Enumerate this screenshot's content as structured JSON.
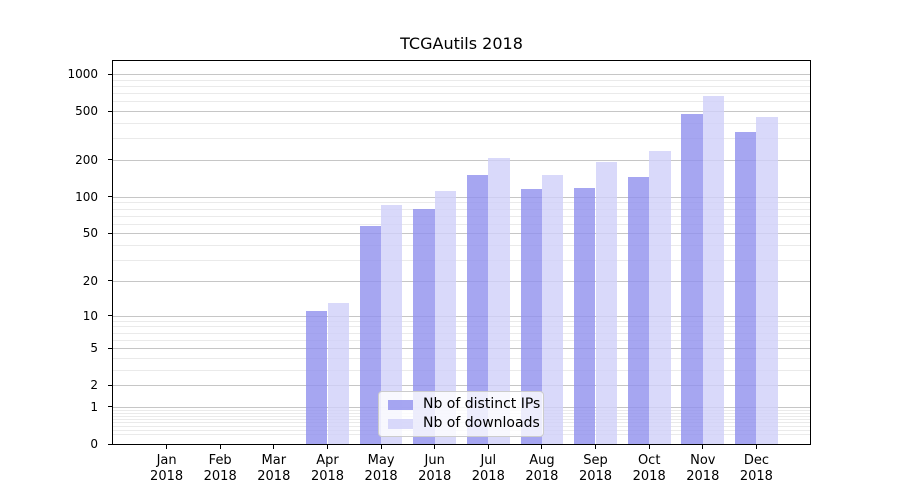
{
  "title": "TCGAutils 2018",
  "chart_data": {
    "type": "bar",
    "categories": [
      "Jan",
      "Feb",
      "Mar",
      "Apr",
      "May",
      "Jun",
      "Jul",
      "Aug",
      "Sep",
      "Oct",
      "Nov",
      "Dec"
    ],
    "year_label": "2018",
    "series": [
      {
        "name": "Nb of distinct IPs",
        "color": "rgba(144,144,238,0.8)",
        "values": [
          0,
          0,
          0,
          11,
          58,
          80,
          150,
          115,
          118,
          145,
          475,
          335
        ]
      },
      {
        "name": "Nb of downloads",
        "color": "rgba(208,208,249,0.8)",
        "values": [
          0,
          0,
          0,
          13,
          85,
          111,
          208,
          150,
          192,
          238,
          660,
          448
        ]
      }
    ],
    "y_scale": "log10(1+value)",
    "ylim": [
      0,
      1270
    ],
    "y_ticks": [
      0,
      1,
      2,
      5,
      10,
      20,
      50,
      100,
      200,
      500,
      1000
    ],
    "y_minor_ticks": [
      0.2,
      0.3,
      0.4,
      0.5,
      0.6,
      0.7,
      0.8,
      0.9,
      3,
      4,
      6,
      7,
      8,
      9,
      30,
      40,
      60,
      70,
      80,
      90,
      300,
      400,
      600,
      700,
      800,
      900
    ],
    "grid": "on",
    "legend": {
      "labels": [
        "Nb of distinct IPs",
        "Nb of downloads"
      ],
      "position": "lower center"
    }
  }
}
